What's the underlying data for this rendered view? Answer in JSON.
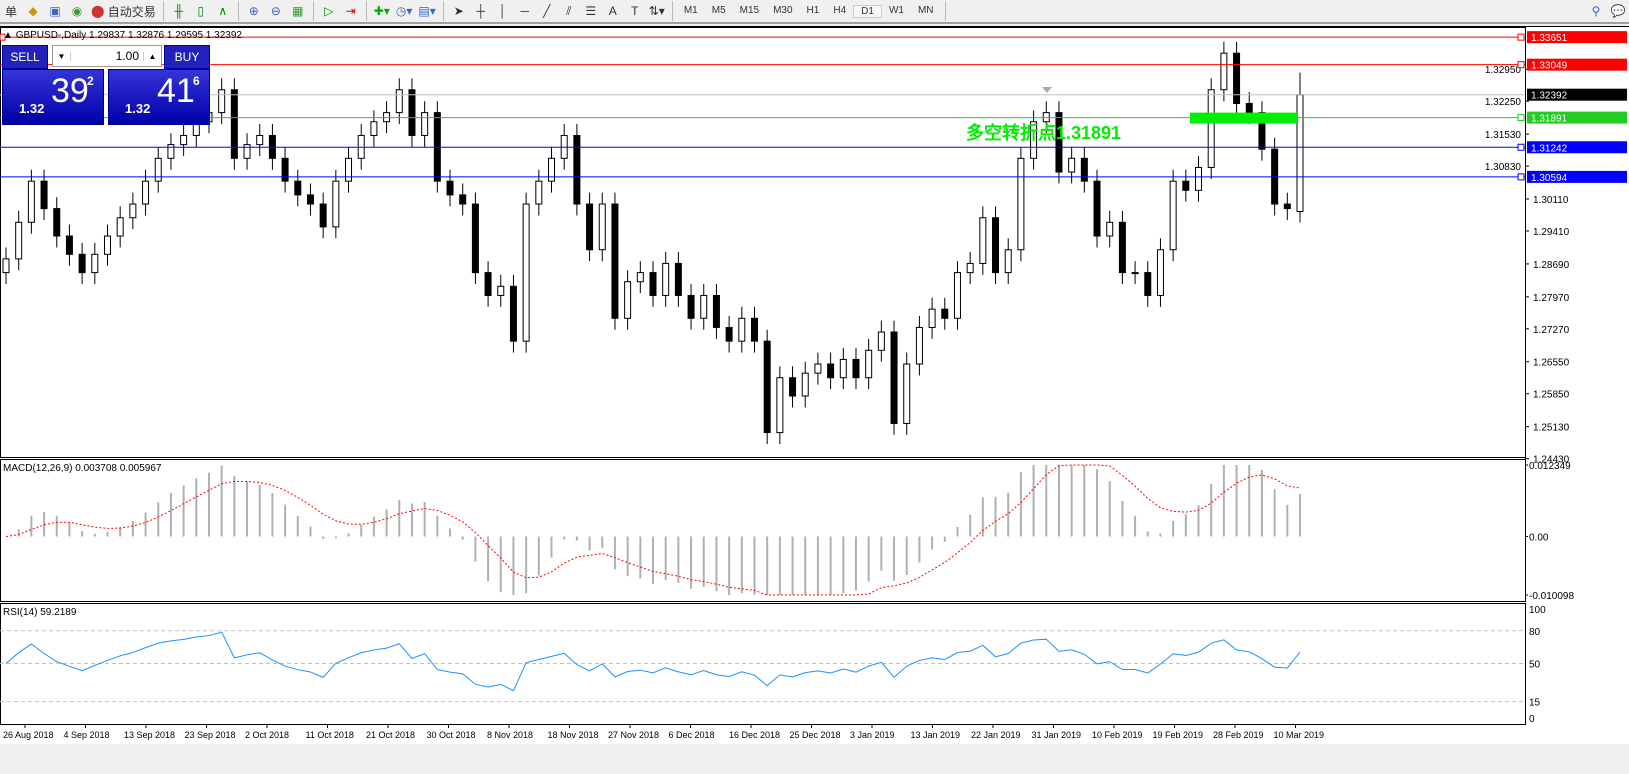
{
  "toolbar": {
    "menu_fragment": "单",
    "auto_trading": "自动交易",
    "timeframes": [
      "M1",
      "M5",
      "M15",
      "M30",
      "H1",
      "H4",
      "D1",
      "W1",
      "MN"
    ],
    "active_timeframe": "D1",
    "icons": [
      "market-watch-icon",
      "navigator-icon",
      "signals-icon",
      "auto-trading-icon",
      "bar-chart-icon",
      "candlestick-icon",
      "line-chart-icon",
      "zoom-in-icon",
      "zoom-out-icon",
      "tile-windows-icon",
      "auto-scroll-icon",
      "chart-shift-icon",
      "indicators-icon",
      "periods-icon",
      "templates-icon",
      "cursor-icon",
      "crosshair-icon",
      "vertical-line-icon",
      "horizontal-line-icon",
      "trendline-icon",
      "equidistant-channel-icon",
      "fibonacci-icon",
      "text-icon",
      "text-label-icon",
      "arrows-icon",
      "search-icon",
      "chat-icon"
    ]
  },
  "chart": {
    "title": "GBPUSD-,Daily  1.29837 1.32876 1.29595 1.32392",
    "trade": {
      "sell": "SELL",
      "buy": "BUY",
      "lot": "1.00",
      "sell_small": "1.32",
      "sell_big": "39",
      "sell_sup": "2",
      "buy_small": "1.32",
      "buy_big": "41",
      "buy_sup": "6"
    },
    "annotation": "多空转折点1.31891",
    "colors": {
      "up_candle": "#ffffff",
      "down_candle": "#000000",
      "red_line": "#ff0000",
      "green_line": "#22cc22",
      "blue_line": "#0000ff",
      "annotation": "#00ee00",
      "macd_signal": "#ff0000",
      "rsi": "#1e90ff"
    }
  },
  "chart_data": [
    {
      "type": "candlestick",
      "symbol": "GBPUSD-",
      "timeframe": "Daily",
      "y_ticks": [
        "1.32950",
        "1.32250",
        "1.31530",
        "1.30830",
        "1.30110",
        "1.29410",
        "1.28690",
        "1.27970",
        "1.27270",
        "1.26550",
        "1.25850",
        "1.25130",
        "1.24430"
      ],
      "ylim": [
        1.2443,
        1.3365
      ],
      "x_ticks": [
        "26 Aug 2018",
        "4 Sep 2018",
        "13 Sep 2018",
        "23 Sep 2018",
        "2 Oct 2018",
        "11 Oct 2018",
        "21 Oct 2018",
        "30 Oct 2018",
        "8 Nov 2018",
        "18 Nov 2018",
        "27 Nov 2018",
        "6 Dec 2018",
        "16 Dec 2018",
        "25 Dec 2018",
        "3 Jan 2019",
        "13 Jan 2019",
        "22 Jan 2019",
        "31 Jan 2019",
        "10 Feb 2019",
        "19 Feb 2019",
        "28 Feb 2019",
        "10 Mar 2019"
      ],
      "closes": [
        1.288,
        1.296,
        1.305,
        1.299,
        1.293,
        1.289,
        1.285,
        1.289,
        1.293,
        1.297,
        1.3,
        1.305,
        1.31,
        1.313,
        1.315,
        1.318,
        1.32,
        1.325,
        1.31,
        1.313,
        1.315,
        1.31,
        1.305,
        1.302,
        1.3,
        1.295,
        1.305,
        1.31,
        1.315,
        1.318,
        1.32,
        1.325,
        1.315,
        1.32,
        1.305,
        1.302,
        1.3,
        1.285,
        1.28,
        1.282,
        1.27,
        1.3,
        1.305,
        1.31,
        1.315,
        1.3,
        1.29,
        1.3,
        1.275,
        1.283,
        1.285,
        1.28,
        1.287,
        1.28,
        1.275,
        1.28,
        1.273,
        1.27,
        1.275,
        1.27,
        1.25,
        1.262,
        1.258,
        1.263,
        1.265,
        1.262,
        1.266,
        1.262,
        1.268,
        1.272,
        1.252,
        1.265,
        1.273,
        1.277,
        1.275,
        1.285,
        1.287,
        1.297,
        1.285,
        1.29,
        1.31,
        1.318,
        1.32,
        1.307,
        1.31,
        1.305,
        1.293,
        1.296,
        1.285,
        1.285,
        1.28,
        1.29,
        1.305,
        1.303,
        1.308,
        1.325,
        1.333,
        1.322,
        1.32,
        1.312,
        1.3,
        1.299,
        1.32392
      ],
      "last": {
        "open": 1.29837,
        "high": 1.32876,
        "low": 1.29595,
        "close": 1.32392
      },
      "price_lines": [
        {
          "value": "1.33651",
          "color": "#ff0000"
        },
        {
          "value": "1.33049",
          "color": "#ff0000"
        },
        {
          "value": "1.32392",
          "color": "#000000",
          "kind": "bid"
        },
        {
          "value": "1.31891",
          "color": "#22cc22"
        },
        {
          "value": "1.31242",
          "color": "#0000ff"
        },
        {
          "value": "1.30594",
          "color": "#0000ff"
        }
      ]
    },
    {
      "type": "bar+line",
      "indicator": "MACD(12,26,9)",
      "label": "MACD(12,26,9) 0.003708 0.005967",
      "ylim": [
        -0.010098,
        0.012349
      ],
      "y_ticks": [
        "0.012349",
        "0.00",
        "-0.010098"
      ]
    },
    {
      "type": "line",
      "indicator": "RSI(14)",
      "label": "RSI(14) 59.2189",
      "ylim": [
        0,
        100
      ],
      "y_ticks": [
        "100",
        "80",
        "50",
        "15",
        "0"
      ],
      "levels": [
        80,
        50,
        15
      ]
    }
  ]
}
